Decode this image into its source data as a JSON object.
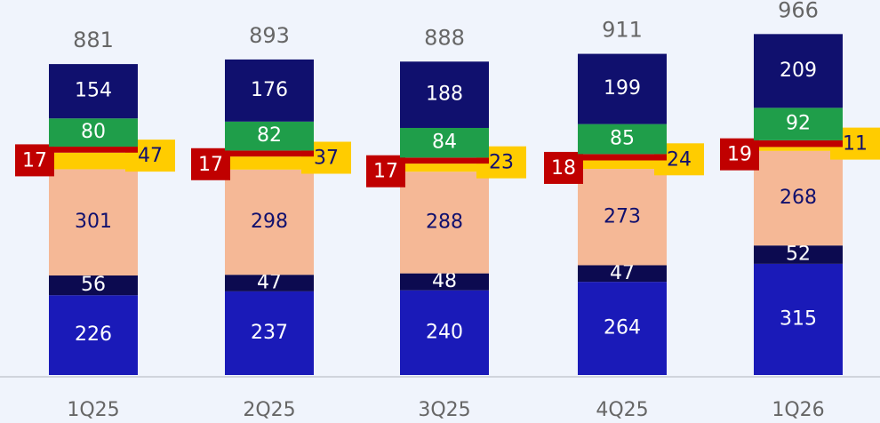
{
  "chart_data": {
    "type": "stacked_bar",
    "categories": [
      "1Q25",
      "2Q25",
      "3Q25",
      "4Q25",
      "1Q26"
    ],
    "series": [
      {
        "color": "#1a1ab8",
        "values": [
          226,
          237,
          240,
          264,
          315
        ]
      },
      {
        "color": "#0c0a50",
        "values": [
          56,
          47,
          48,
          47,
          52
        ]
      },
      {
        "color": "#f5b896",
        "values": [
          301,
          298,
          288,
          273,
          268
        ]
      },
      {
        "color": "#ffcc00",
        "values": [
          47,
          37,
          23,
          24,
          11
        ]
      },
      {
        "color": "#c00000",
        "values": [
          17,
          17,
          17,
          18,
          19
        ]
      },
      {
        "color": "#1f9e4a",
        "values": [
          80,
          82,
          84,
          85,
          92
        ]
      },
      {
        "color": "#10106e",
        "values": [
          154,
          176,
          188,
          199,
          209
        ]
      }
    ],
    "totals": [
      881,
      893,
      888,
      911,
      966
    ],
    "ylim": [
      0,
      1060
    ]
  }
}
